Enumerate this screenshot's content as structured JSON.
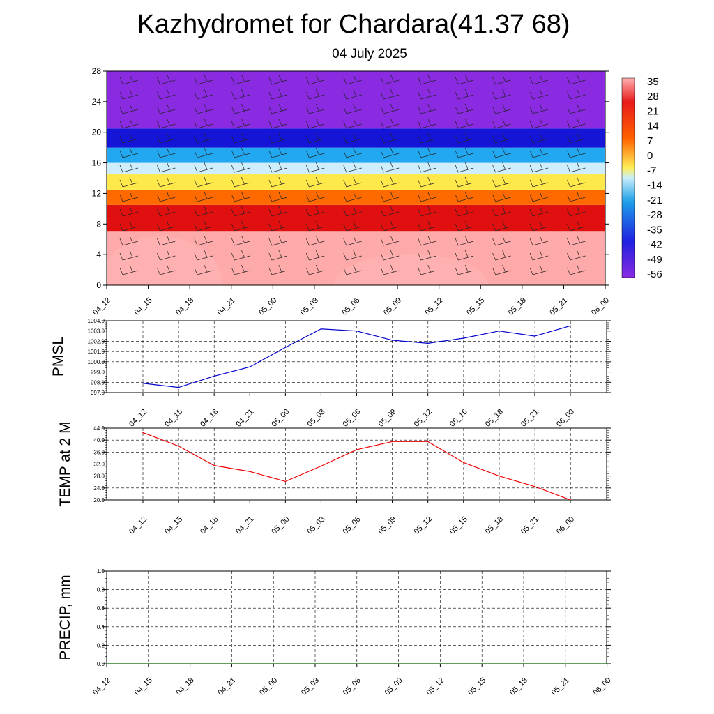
{
  "title": "Kazhydromet for Chardara(41.37 68)",
  "subtitle": "04 July 2025",
  "chart_data": [
    {
      "type": "heatmap",
      "name": "temperature-cross-section",
      "x_tick_labels": [
        "04_12",
        "04_15",
        "04_18",
        "04_21",
        "05_00",
        "05_03",
        "05_06",
        "05_09",
        "05_12",
        "05_15",
        "05_18",
        "05_21",
        "06_00"
      ],
      "y_ticks": [
        0,
        4,
        8,
        12,
        16,
        20,
        24,
        28
      ],
      "ylim": [
        0,
        28
      ],
      "colorbar_labels": [
        "35",
        "28",
        "21",
        "14",
        "7",
        "0",
        "-7",
        "-14",
        "-21",
        "-28",
        "-35",
        "-42",
        "-49",
        "-56"
      ],
      "colorbar_colors": [
        "#ffb0b0",
        "#e81a1a",
        "#ff6000",
        "#ffee55",
        "#c8eefa",
        "#1e9fe8",
        "#2020e0",
        "#8a2be2"
      ],
      "bands": [
        {
          "from": 0,
          "to": 7,
          "color": "#ffaaaa"
        },
        {
          "from": 7,
          "to": 10.5,
          "color": "#e01010"
        },
        {
          "from": 10.5,
          "to": 12.5,
          "color": "#ff6a00"
        },
        {
          "from": 12.5,
          "to": 14.5,
          "color": "#ffe94a"
        },
        {
          "from": 14.5,
          "to": 16,
          "color": "#cdeefa"
        },
        {
          "from": 16,
          "to": 18,
          "color": "#22a8f0"
        },
        {
          "from": 18,
          "to": 20.5,
          "color": "#1515d8"
        },
        {
          "from": 20.5,
          "to": 28,
          "color": "#8a2be2"
        }
      ]
    },
    {
      "type": "line",
      "name": "pmsl",
      "ylabel": "PMSL",
      "categories": [
        "04_12",
        "04_15",
        "04_18",
        "04_21",
        "05_00",
        "05_03",
        "05_06",
        "05_09",
        "05_12",
        "05_15",
        "05_18",
        "05_21",
        "06_00"
      ],
      "values": [
        997.9,
        997.5,
        998.6,
        999.5,
        1001.4,
        1003.2,
        1003.0,
        1002.1,
        1001.8,
        1002.3,
        1003.0,
        1002.5,
        1003.5
      ],
      "y_tick_labels": [
        "997.0",
        "998.0",
        "999.0",
        "1000.0",
        "1001.0",
        "1002.0",
        "1003.0",
        "1004.0"
      ],
      "ylim": [
        997,
        1004
      ],
      "color": "#0000cc"
    },
    {
      "type": "line",
      "name": "temp2m",
      "ylabel": "TEMP at 2 M",
      "categories": [
        "04_12",
        "04_15",
        "04_18",
        "04_21",
        "05_00",
        "05_03",
        "05_06",
        "05_09",
        "05_12",
        "05_15",
        "05_18",
        "05_21",
        "06_00"
      ],
      "values": [
        42.5,
        38.0,
        31.5,
        29.5,
        26.2,
        31.3,
        36.8,
        39.5,
        39.5,
        32.5,
        28.0,
        24.5,
        20.0
      ],
      "y_tick_labels": [
        "20.0",
        "24.0",
        "28.0",
        "32.0",
        "36.0",
        "40.0",
        "44.0"
      ],
      "ylim": [
        20,
        44
      ],
      "color": "#ee0000"
    },
    {
      "type": "line",
      "name": "precip",
      "ylabel": "PRECIP, mm",
      "categories": [
        "04_12",
        "04_15",
        "04_18",
        "04_21",
        "05_00",
        "05_03",
        "05_06",
        "05_09",
        "05_12",
        "05_15",
        "05_18",
        "05_21",
        "06_00"
      ],
      "values": [
        0,
        0,
        0,
        0,
        0,
        0,
        0,
        0,
        0,
        0,
        0,
        0,
        0
      ],
      "y_tick_labels": [
        "0.0",
        "0.2",
        "0.4",
        "0.6",
        "0.8",
        "1.0"
      ],
      "ylim": [
        0,
        1
      ],
      "color": "#006600"
    }
  ]
}
